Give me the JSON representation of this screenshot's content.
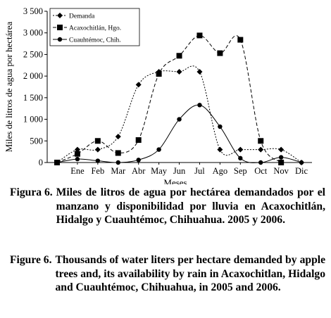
{
  "chart_data": {
    "type": "line",
    "ylabel": "Miles de litros de agua por hectárea",
    "xlabel": "Meses",
    "categories": [
      "",
      "Ene",
      "Feb",
      "Mar",
      "Abr",
      "May",
      "Jun",
      "Jul",
      "Ago",
      "Sep",
      "Oct",
      "Nov",
      "Dic"
    ],
    "ylim": [
      0,
      3500
    ],
    "yticks": [
      0,
      500,
      1000,
      1500,
      2000,
      2500,
      3000,
      3500
    ],
    "ytick_labels": [
      "0",
      "500",
      "1 000",
      "1 500",
      "2 000",
      "2 500",
      "3 000",
      "3 500"
    ],
    "legend_position": "top-left",
    "series": [
      {
        "name": "Demanda",
        "marker": "diamond",
        "line": "solid",
        "values": [
          0,
          300,
          300,
          600,
          1800,
          2100,
          2100,
          2100,
          300,
          300,
          300,
          300,
          0
        ]
      },
      {
        "name": "Acaxochitlán, Hgo.",
        "marker": "square",
        "line": "dashed",
        "values": [
          0,
          200,
          500,
          220,
          520,
          2050,
          2470,
          2940,
          2530,
          2840,
          500,
          0,
          null
        ]
      },
      {
        "name": "Cuauhtémoc, Chih.",
        "marker": "circle",
        "line": "solid",
        "values": [
          0,
          80,
          40,
          0,
          60,
          300,
          1000,
          1330,
          830,
          100,
          0,
          120,
          0
        ]
      }
    ]
  },
  "captions": {
    "es_label": "Figura 6.",
    "es_text": "Miles de litros de agua por hectárea demandados por el manzano y disponibilidad por lluvia en Acaxochitlán, Hidalgo y Cuauhtémoc, Chihuahua. 2005 y 2006.",
    "en_label": "Figure 6.",
    "en_text": "Thousands of water liters per hectare demanded by apple trees and, its availability by rain in Acaxochitlan, Hidalgo and Cuauhtémoc, Chihuahua, in 2005 and 2006."
  }
}
